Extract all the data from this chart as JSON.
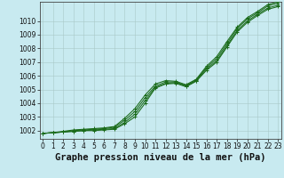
{
  "title": "Graphe pression niveau de la mer (hPa)",
  "background_color": "#c8eaf0",
  "line_color": "#1a6b1a",
  "x_ticks": [
    0,
    1,
    2,
    3,
    4,
    5,
    6,
    7,
    8,
    9,
    10,
    11,
    12,
    13,
    14,
    15,
    16,
    17,
    18,
    19,
    20,
    21,
    22,
    23
  ],
  "y_ticks": [
    1002,
    1003,
    1004,
    1005,
    1006,
    1007,
    1008,
    1009,
    1010
  ],
  "ylim": [
    1001.4,
    1011.4
  ],
  "xlim": [
    -0.3,
    23.3
  ],
  "series1": [
    1001.8,
    1001.85,
    1001.9,
    1001.95,
    1002.0,
    1002.0,
    1002.05,
    1002.1,
    1002.5,
    1003.0,
    1004.0,
    1005.1,
    1005.4,
    1005.45,
    1005.2,
    1005.6,
    1006.4,
    1007.0,
    1008.1,
    1009.2,
    1009.9,
    1010.4,
    1010.85,
    1011.05
  ],
  "series2": [
    1001.8,
    1001.85,
    1001.9,
    1001.95,
    1002.0,
    1002.05,
    1002.1,
    1002.15,
    1002.6,
    1003.2,
    1004.2,
    1005.15,
    1005.45,
    1005.5,
    1005.25,
    1005.65,
    1006.5,
    1007.1,
    1008.2,
    1009.3,
    1010.0,
    1010.5,
    1010.95,
    1011.15
  ],
  "series3": [
    1001.8,
    1001.85,
    1001.9,
    1002.0,
    1002.05,
    1002.1,
    1002.15,
    1002.25,
    1002.75,
    1003.4,
    1004.4,
    1005.25,
    1005.55,
    1005.55,
    1005.3,
    1005.7,
    1006.6,
    1007.25,
    1008.35,
    1009.45,
    1010.15,
    1010.6,
    1011.1,
    1011.3
  ],
  "series4": [
    1001.8,
    1001.85,
    1001.95,
    1002.05,
    1002.1,
    1002.15,
    1002.2,
    1002.3,
    1002.9,
    1003.6,
    1004.6,
    1005.4,
    1005.65,
    1005.6,
    1005.35,
    1005.75,
    1006.7,
    1007.4,
    1008.5,
    1009.55,
    1010.25,
    1010.7,
    1011.2,
    1011.4
  ],
  "title_fontsize": 7.5,
  "tick_fontsize": 5.5
}
